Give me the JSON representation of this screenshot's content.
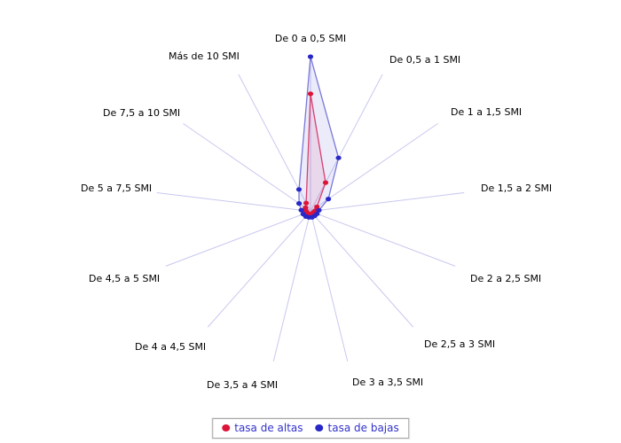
{
  "chart_data": {
    "type": "radar",
    "title": "",
    "categories": [
      "De 0 a 0,5 SMI",
      "De 0,5 a 1 SMI",
      "De 1 a 1,5 SMI",
      "De 1,5 a 2 SMI",
      "De 2 a 2,5 SMI",
      "De 2,5 a 3 SMI",
      "De 3 a 3,5 SMI",
      "De 3,5 a 4 SMI",
      "De 4 a 4,5 SMI",
      "De 4,5 a 5 SMI",
      "De 5 a 7,5 SMI",
      "De 7,5 a 10 SMI",
      "Más de 10 SMI"
    ],
    "series": [
      {
        "name": "tasa de altas",
        "marker_color": "#dc1438",
        "line_color": "#d84070",
        "fill_color": "rgba(215,40,110,0.10)",
        "values": [
          0.76,
          0.21,
          0.05,
          0.03,
          0.02,
          0.02,
          0.02,
          0.02,
          0.02,
          0.025,
          0.03,
          0.04,
          0.06
        ]
      },
      {
        "name": "tasa de bajas",
        "marker_color": "#2828c8",
        "line_color": "#7878d8",
        "fill_color": "rgba(100,100,220,0.13)",
        "values": [
          1.0,
          0.39,
          0.14,
          0.055,
          0.045,
          0.04,
          0.04,
          0.04,
          0.045,
          0.05,
          0.06,
          0.09,
          0.16
        ]
      }
    ],
    "radial_axis": {
      "min": 0,
      "max": 1,
      "ticks_visible": false,
      "gridlines_visible": false,
      "note": "values estimated as fractions of the maximum radius; no numeric scale is shown in the chart"
    },
    "spoke_color": "#c8c8ef",
    "label_color": "#000000",
    "legend_position": "bottom",
    "legend_text_color": "#3232cc",
    "background_color": "#ffffff"
  }
}
